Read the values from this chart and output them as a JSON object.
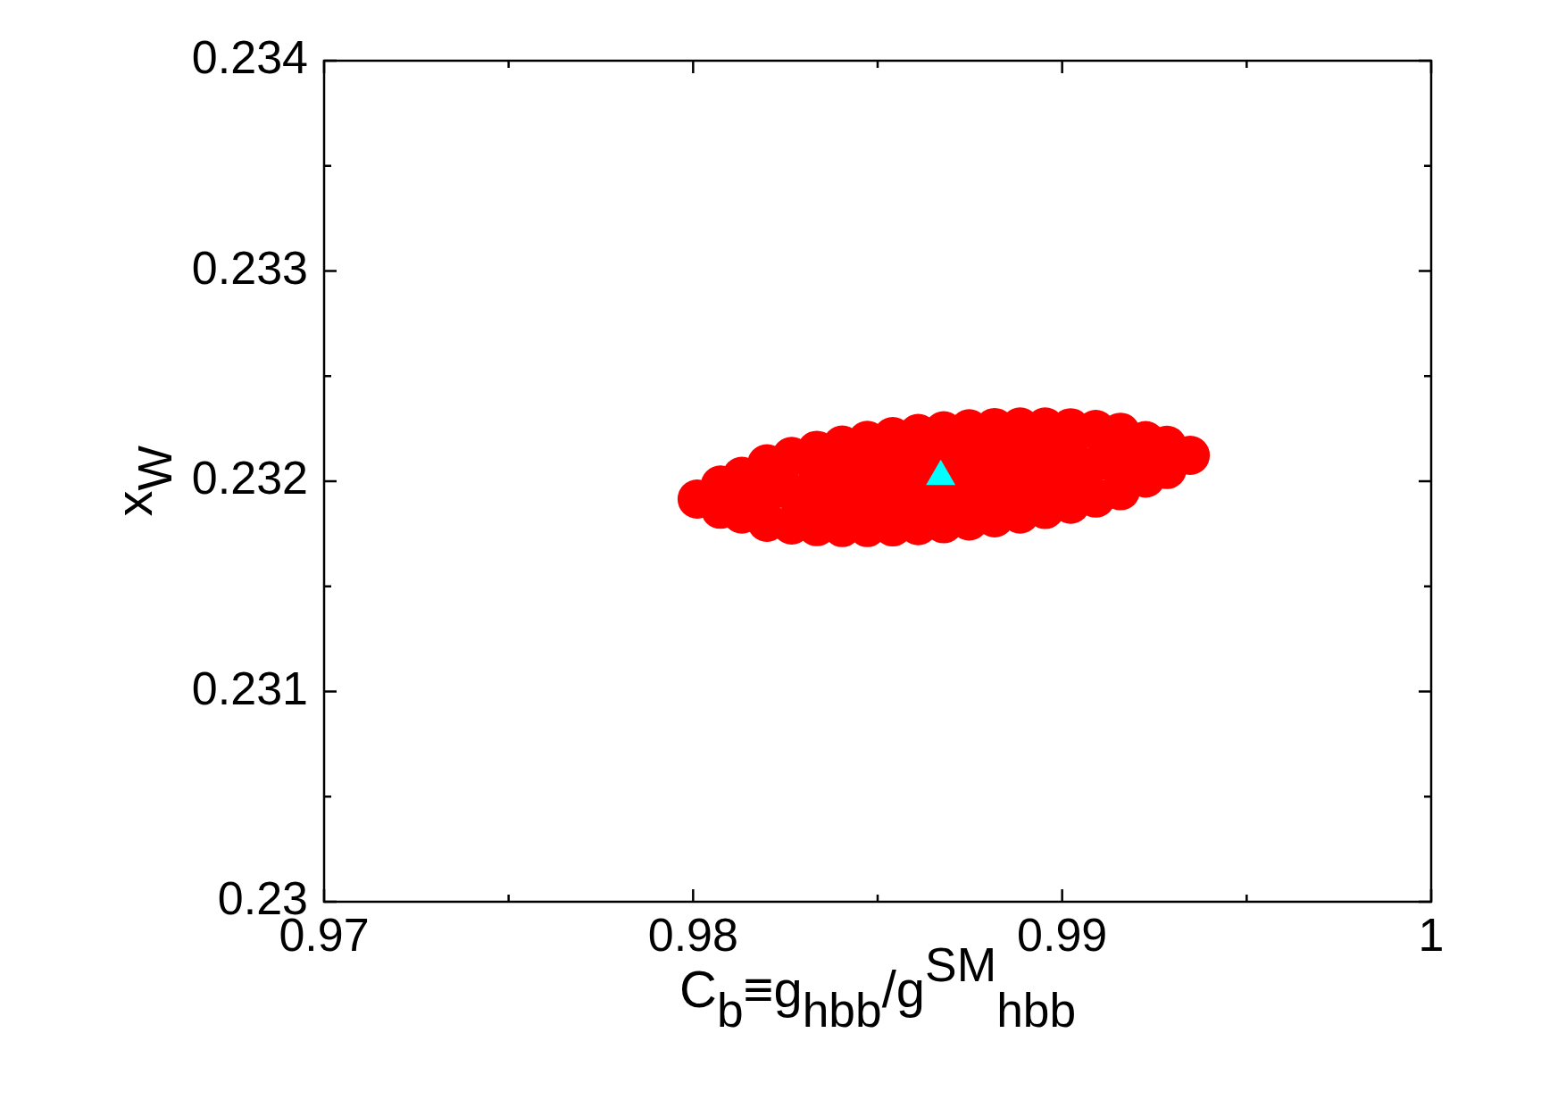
{
  "chart_data": {
    "type": "scatter",
    "xlabel": "C$_{b}$≡g$_{hbb}$/g$^{SM}$$_{hbb}$",
    "ylabel": "x$_{W}$",
    "xlim": [
      0.97,
      1
    ],
    "xticks": [
      0.97,
      {
        "value": 0.975,
        "label": null
      },
      0.98,
      {
        "value": 0.985,
        "label": null
      },
      0.99,
      {
        "value": 0.995,
        "label": null
      },
      1
    ],
    "ylim": [
      0.23,
      0.234
    ],
    "yticks": [
      0.23,
      {
        "value": 0.2305,
        "label": null
      },
      0.231,
      {
        "value": 0.2315,
        "label": null
      },
      0.232,
      {
        "value": 0.2325,
        "label": null
      },
      0.233,
      {
        "value": 0.2335,
        "label": null
      },
      0.234
    ],
    "series": [
      {
        "color": "#ff0000",
        "marker": "circle",
        "x": [
          0.99347,
          0.99284,
          0.99226,
          0.99158,
          0.99091,
          0.99023,
          0.98954,
          0.98886,
          0.98817,
          0.98748,
          0.98679,
          0.9861,
          0.98541,
          0.98472,
          0.98404,
          0.98335,
          0.98267,
          0.982,
          0.98132,
          0.98074,
          0.98011,
          0.98074,
          0.98132,
          0.982,
          0.98267,
          0.98335,
          0.98404,
          0.98472,
          0.98541,
          0.9861,
          0.98679,
          0.98748,
          0.98817,
          0.98886,
          0.98954,
          0.99023,
          0.99091,
          0.99158,
          0.99226,
          0.99284,
          0.9834,
          0.98408,
          0.98476,
          0.98544,
          0.98611,
          0.98679,
          0.98747,
          0.98815,
          0.98882,
          0.9895,
          0.99018,
          0.98306,
          0.98374,
          0.98442,
          0.9851,
          0.98577,
          0.98645,
          0.98713,
          0.98781,
          0.98848,
          0.98916,
          0.98984,
          0.99052,
          0.98185,
          0.98248,
          0.9911,
          0.99173
        ],
        "values": [
          0.232123,
          0.232171,
          0.232193,
          0.232233,
          0.232246,
          0.232254,
          0.232258,
          0.232258,
          0.232255,
          0.232249,
          0.23224,
          0.232227,
          0.232212,
          0.232194,
          0.232172,
          0.232147,
          0.232118,
          0.232083,
          0.232023,
          0.231982,
          0.231915,
          0.231867,
          0.231844,
          0.231805,
          0.231792,
          0.231784,
          0.23178,
          0.23178,
          0.231783,
          0.231789,
          0.231798,
          0.231811,
          0.231826,
          0.231844,
          0.231866,
          0.231891,
          0.23192,
          0.231955,
          0.232015,
          0.232056,
          0.232032,
          0.232048,
          0.232062,
          0.232075,
          0.232087,
          0.232098,
          0.232109,
          0.232117,
          0.232125,
          0.232132,
          0.232138,
          0.231898,
          0.231903,
          0.231909,
          0.231917,
          0.231925,
          0.231935,
          0.231945,
          0.231957,
          0.231969,
          0.231983,
          0.231998,
          0.232015,
          0.231933,
          0.231965,
          0.232099,
          0.232087
        ]
      },
      {
        "color": "#00ffff",
        "marker": "triangle",
        "x": [
          0.98671
        ],
        "values": [
          0.232022
        ]
      }
    ]
  }
}
